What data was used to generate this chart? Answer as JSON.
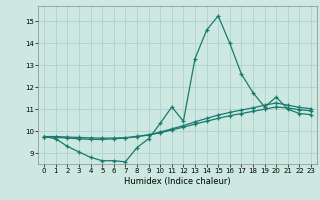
{
  "xlabel": "Humidex (Indice chaleur)",
  "background_color": "#cce8e0",
  "grid_color": "#aacccc",
  "line_color": "#1a7a6e",
  "xlim": [
    -0.5,
    23.5
  ],
  "ylim": [
    8.5,
    15.7
  ],
  "yticks": [
    9,
    10,
    11,
    12,
    13,
    14,
    15
  ],
  "xticks": [
    0,
    1,
    2,
    3,
    4,
    5,
    6,
    7,
    8,
    9,
    10,
    11,
    12,
    13,
    14,
    15,
    16,
    17,
    18,
    19,
    20,
    21,
    22,
    23
  ],
  "line1_x": [
    0,
    1,
    2,
    3,
    4,
    5,
    6,
    7,
    8,
    9,
    10,
    11,
    12,
    13,
    14,
    15,
    16,
    17,
    18,
    19,
    20,
    21,
    22,
    23
  ],
  "line1_y": [
    9.75,
    9.65,
    9.3,
    9.05,
    8.8,
    8.65,
    8.65,
    8.6,
    9.25,
    9.65,
    10.35,
    11.1,
    10.45,
    13.3,
    14.6,
    15.25,
    14.0,
    12.6,
    11.75,
    11.1,
    11.55,
    11.0,
    10.8,
    10.75
  ],
  "line2_x": [
    0,
    1,
    2,
    3,
    4,
    5,
    6,
    7,
    8,
    9,
    10,
    11,
    12,
    13,
    14,
    15,
    16,
    17,
    18,
    19,
    20,
    21,
    22,
    23
  ],
  "line2_y": [
    9.75,
    9.72,
    9.68,
    9.65,
    9.62,
    9.62,
    9.65,
    9.68,
    9.75,
    9.82,
    9.92,
    10.05,
    10.18,
    10.32,
    10.45,
    10.58,
    10.7,
    10.8,
    10.9,
    11.0,
    11.1,
    11.05,
    10.98,
    10.92
  ],
  "line3_x": [
    0,
    1,
    2,
    3,
    4,
    5,
    6,
    7,
    8,
    9,
    10,
    11,
    12,
    13,
    14,
    15,
    16,
    17,
    18,
    19,
    20,
    21,
    22,
    23
  ],
  "line3_y": [
    9.75,
    9.75,
    9.73,
    9.71,
    9.69,
    9.68,
    9.68,
    9.7,
    9.76,
    9.83,
    9.96,
    10.1,
    10.25,
    10.42,
    10.58,
    10.73,
    10.85,
    10.96,
    11.06,
    11.18,
    11.28,
    11.18,
    11.08,
    11.02
  ]
}
